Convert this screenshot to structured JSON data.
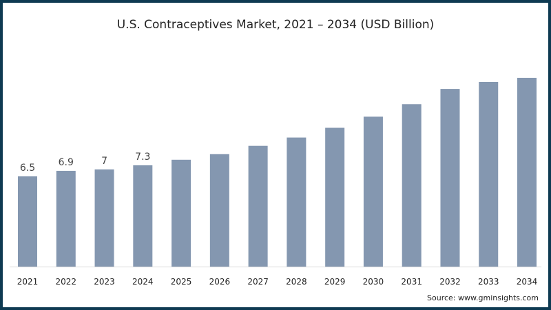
{
  "chart_data": {
    "type": "bar",
    "title": "U.S. Contraceptives Market, 2021 – 2034 (USD Billion)",
    "xlabel": "",
    "ylabel": "",
    "categories": [
      "2021",
      "2022",
      "2023",
      "2024",
      "2025",
      "2026",
      "2027",
      "2028",
      "2029",
      "2030",
      "2031",
      "2032",
      "2033",
      "2034"
    ],
    "values": [
      6.5,
      6.9,
      7.0,
      7.3,
      7.7,
      8.1,
      8.7,
      9.3,
      10.0,
      10.8,
      11.7,
      12.8,
      13.3,
      13.6
    ],
    "data_labels": [
      "6.5",
      "6.9",
      "7",
      "7.3",
      "",
      "",
      "",
      "",
      "",
      "",
      "",
      "",
      "",
      ""
    ],
    "ylim": [
      0,
      14
    ],
    "grid": false,
    "bar_color": "#8497b0",
    "source": "Source: www.gminsights.com"
  }
}
